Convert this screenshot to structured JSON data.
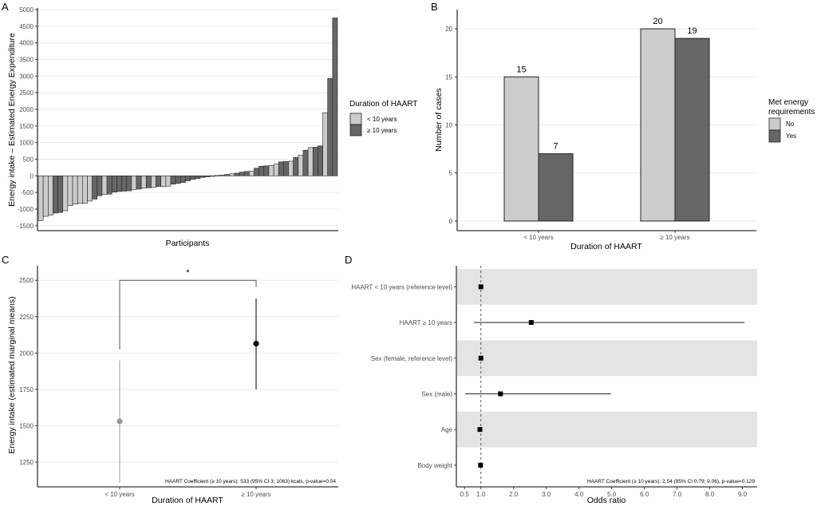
{
  "colors": {
    "light": "#cccccc",
    "dark": "#666666",
    "bar_outline": "#222222",
    "grid": "#ebebeb",
    "band": "#e4e4e4",
    "point_light": "#999999",
    "point_dark": "#000000"
  },
  "chart_data": [
    {
      "panel": "A",
      "type": "bar",
      "xlabel": "Participants",
      "ylabel": "Energy intake – Estimated Energy Expenditure",
      "ylim": [
        -1650,
        5050
      ],
      "yticks": [
        5000,
        4500,
        4000,
        3500,
        3000,
        2500,
        2000,
        1500,
        1000,
        500,
        0,
        -500,
        -1000,
        -1500
      ],
      "legend": {
        "title": "Duration of HAART",
        "position": "right",
        "entries": [
          {
            "label": "< 10 years",
            "group": "lt10"
          },
          {
            "label": "≥ 10 years",
            "group": "ge10"
          }
        ]
      },
      "bars": [
        {
          "v": -1350,
          "g": "lt10"
        },
        {
          "v": -1220,
          "g": "lt10"
        },
        {
          "v": -1180,
          "g": "lt10"
        },
        {
          "v": -1120,
          "g": "ge10"
        },
        {
          "v": -1100,
          "g": "ge10"
        },
        {
          "v": -1050,
          "g": "lt10"
        },
        {
          "v": -900,
          "g": "lt10"
        },
        {
          "v": -850,
          "g": "lt10"
        },
        {
          "v": -830,
          "g": "lt10"
        },
        {
          "v": -830,
          "g": "lt10"
        },
        {
          "v": -760,
          "g": "lt10"
        },
        {
          "v": -700,
          "g": "ge10"
        },
        {
          "v": -600,
          "g": "ge10"
        },
        {
          "v": -560,
          "g": "lt10"
        },
        {
          "v": -550,
          "g": "ge10"
        },
        {
          "v": -490,
          "g": "ge10"
        },
        {
          "v": -470,
          "g": "ge10"
        },
        {
          "v": -460,
          "g": "ge10"
        },
        {
          "v": -450,
          "g": "ge10"
        },
        {
          "v": -410,
          "g": "lt10"
        },
        {
          "v": -400,
          "g": "ge10"
        },
        {
          "v": -370,
          "g": "lt10"
        },
        {
          "v": -360,
          "g": "ge10"
        },
        {
          "v": -350,
          "g": "lt10"
        },
        {
          "v": -320,
          "g": "ge10"
        },
        {
          "v": -320,
          "g": "lt10"
        },
        {
          "v": -310,
          "g": "lt10"
        },
        {
          "v": -250,
          "g": "ge10"
        },
        {
          "v": -230,
          "g": "ge10"
        },
        {
          "v": -200,
          "g": "ge10"
        },
        {
          "v": -150,
          "g": "ge10"
        },
        {
          "v": -110,
          "g": "ge10"
        },
        {
          "v": -80,
          "g": "ge10"
        },
        {
          "v": -50,
          "g": "ge10"
        },
        {
          "v": -30,
          "g": "ge10"
        },
        {
          "v": -10,
          "g": "ge10"
        },
        {
          "v": 10,
          "g": "ge10"
        },
        {
          "v": 20,
          "g": "ge10"
        },
        {
          "v": 40,
          "g": "ge10"
        },
        {
          "v": 60,
          "g": "lt10"
        },
        {
          "v": 80,
          "g": "ge10"
        },
        {
          "v": 110,
          "g": "ge10"
        },
        {
          "v": 130,
          "g": "ge10"
        },
        {
          "v": 140,
          "g": "lt10"
        },
        {
          "v": 230,
          "g": "ge10"
        },
        {
          "v": 290,
          "g": "ge10"
        },
        {
          "v": 300,
          "g": "ge10"
        },
        {
          "v": 310,
          "g": "lt10"
        },
        {
          "v": 350,
          "g": "lt10"
        },
        {
          "v": 420,
          "g": "ge10"
        },
        {
          "v": 430,
          "g": "ge10"
        },
        {
          "v": 440,
          "g": "lt10"
        },
        {
          "v": 550,
          "g": "ge10"
        },
        {
          "v": 620,
          "g": "lt10"
        },
        {
          "v": 770,
          "g": "ge10"
        },
        {
          "v": 850,
          "g": "lt10"
        },
        {
          "v": 860,
          "g": "ge10"
        },
        {
          "v": 900,
          "g": "ge10"
        },
        {
          "v": 1900,
          "g": "lt10"
        },
        {
          "v": 2930,
          "g": "ge10"
        },
        {
          "v": 4750,
          "g": "ge10"
        }
      ]
    },
    {
      "panel": "B",
      "type": "bar",
      "xlabel": "Duration of HAART",
      "ylabel": "Number of cases",
      "ylim": [
        -1,
        22
      ],
      "yticks": [
        0,
        5,
        10,
        15,
        20
      ],
      "categories": [
        "< 10 years",
        "≥ 10 years"
      ],
      "series": [
        {
          "name": "No",
          "values": [
            15,
            20
          ],
          "color_key": "light"
        },
        {
          "name": "Yes",
          "values": [
            7,
            19
          ],
          "color_key": "dark"
        }
      ],
      "legend": {
        "title_lines": [
          "Met energy",
          "requirements"
        ],
        "position": "right"
      }
    },
    {
      "panel": "C",
      "type": "scatter",
      "xlabel": "Duration of HAART",
      "ylabel": "Energy intake (estimated marginal means)",
      "ylim": [
        1080,
        2600
      ],
      "yticks": [
        1250,
        1500,
        1750,
        2000,
        2250,
        2500
      ],
      "categories": [
        "< 10 years",
        "≥ 10 years"
      ],
      "points": [
        {
          "category": "< 10 years",
          "mean": 1530,
          "lower": 1110,
          "upper": 1950,
          "color_key": "point_light"
        },
        {
          "category": "≥ 10 years",
          "mean": 2065,
          "lower": 1750,
          "upper": 2375,
          "color_key": "point_dark"
        }
      ],
      "significance": {
        "label": "*",
        "y": 2500,
        "left_bottom": 2025,
        "right_bottom": 2455
      },
      "annotation": "HAART Coefficient (≥ 10 years): 533 (95% CI 3; 1063) kcals, p-value=0.04"
    },
    {
      "panel": "D",
      "type": "scatter",
      "subtype": "forest",
      "xlabel": "Odds ratio",
      "xlim": [
        0.25,
        9.45
      ],
      "xticks": [
        0.5,
        1.0,
        2.0,
        3.0,
        4.0,
        5.0,
        6.0,
        7.0,
        8.0,
        9.0
      ],
      "xtick_labels": [
        "0.5",
        "1.0",
        "2.0",
        "3.0",
        "4.0",
        "5.0",
        "6.0",
        "7.0",
        "8.0",
        "9.0"
      ],
      "reference_line": 1.0,
      "rows": [
        {
          "label": "HAART < 10 years (reference level)",
          "or": 1.0,
          "lower": null,
          "upper": null,
          "shaded": true
        },
        {
          "label": "HAART ≥ 10 years",
          "or": 2.54,
          "lower": 0.79,
          "upper": 9.06,
          "shaded": false
        },
        {
          "label": "Sex (female, reference level)",
          "or": 1.0,
          "lower": null,
          "upper": null,
          "shaded": true
        },
        {
          "label": "Sex (male)",
          "or": 1.6,
          "lower": 0.52,
          "upper": 4.98,
          "shaded": false
        },
        {
          "label": "Age",
          "or": 0.97,
          "lower": null,
          "upper": null,
          "shaded": true
        },
        {
          "label": "Body weight",
          "or": 0.99,
          "lower": null,
          "upper": null,
          "shaded": false
        }
      ],
      "annotation": "HAART Coefficient (≥ 10 years): 2.54 (95% CI 0.79; 9.06), p-value=0.129"
    }
  ],
  "panels": {
    "A": "A",
    "B": "B",
    "C": "C",
    "D": "D"
  }
}
